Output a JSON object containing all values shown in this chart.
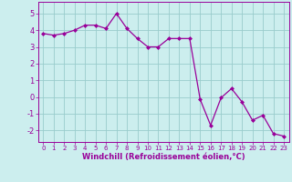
{
  "x": [
    0,
    1,
    2,
    3,
    4,
    5,
    6,
    7,
    8,
    9,
    10,
    11,
    12,
    13,
    14,
    15,
    16,
    17,
    18,
    19,
    20,
    21,
    22,
    23
  ],
  "y": [
    3.8,
    3.7,
    3.8,
    4.0,
    4.3,
    4.3,
    4.1,
    5.0,
    4.1,
    3.5,
    3.0,
    3.0,
    3.5,
    3.5,
    3.5,
    -0.15,
    -1.7,
    -0.05,
    0.5,
    -0.3,
    -1.4,
    -1.1,
    -2.2,
    -2.35
  ],
  "line_color": "#990099",
  "marker": "D",
  "marker_size": 2,
  "bg_color": "#cceeee",
  "grid_color": "#99cccc",
  "xlabel": "Windchill (Refroidissement éolien,°C)",
  "ylabel_ticks": [
    -2,
    -1,
    0,
    1,
    2,
    3,
    4,
    5
  ],
  "xtick_labels": [
    "0",
    "1",
    "2",
    "3",
    "4",
    "5",
    "6",
    "7",
    "8",
    "9",
    "10",
    "11",
    "12",
    "13",
    "14",
    "15",
    "16",
    "17",
    "18",
    "19",
    "20",
    "21",
    "22",
    "23"
  ],
  "xlim": [
    -0.5,
    23.5
  ],
  "ylim": [
    -2.7,
    5.7
  ],
  "tick_color": "#990099",
  "font_color": "#990099"
}
